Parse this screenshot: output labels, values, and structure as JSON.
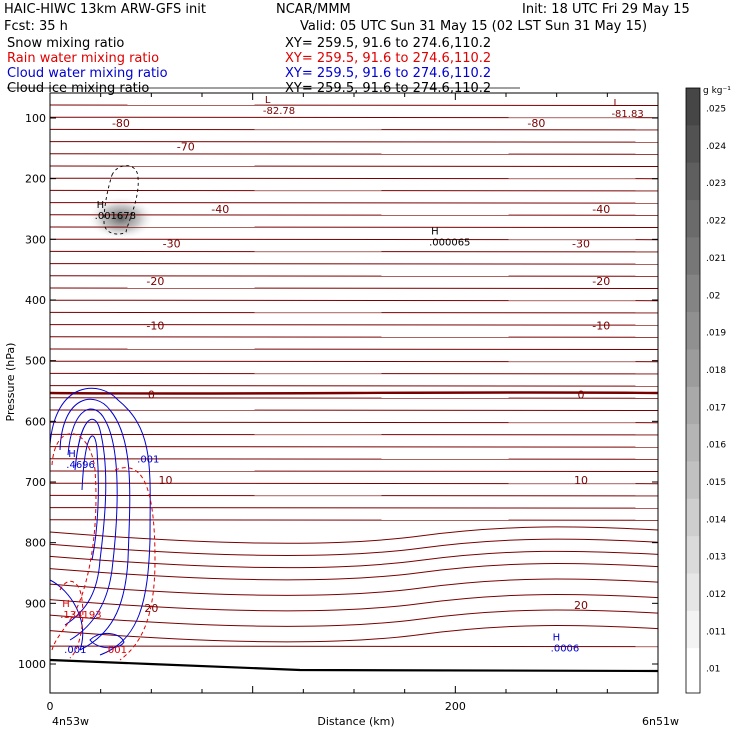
{
  "header": {
    "model": "HAIC-HIWC 13km ARW-GFS init",
    "center": "NCAR/MMM",
    "init": "Init: 18 UTC Fri 29 May 15",
    "fcst": "Fcst:   35 h",
    "valid": "Valid: 05 UTC Sun 31 May 15 (02 LST Sun 31 May 15)",
    "fields": [
      {
        "name": "Snow mixing ratio",
        "xy": "XY= 259.5, 91.6 to 274.6,110.2",
        "color": "#000000"
      },
      {
        "name": "Rain water mixing ratio",
        "xy": "XY= 259.5, 91.6 to 274.6,110.2",
        "color": "#e00000"
      },
      {
        "name": "Cloud water mixing ratio",
        "xy": "XY= 259.5, 91.6 to 274.6,110.2",
        "color": "#0000d0"
      },
      {
        "name": "Cloud ice mixing ratio",
        "xy": "XY= 259.5, 91.6 to 274.6,110.2",
        "color": "#000000"
      }
    ]
  },
  "colorbar": {
    "unit": "g kg⁻¹",
    "labels": [
      ".025",
      ".024",
      ".023",
      ".022",
      ".021",
      ".02",
      ".019",
      ".018",
      ".017",
      ".016",
      ".015",
      ".014",
      ".013",
      ".012",
      ".011",
      ".01"
    ]
  },
  "chart_data": {
    "type": "cross-section contour",
    "xlabel": "Distance (km)",
    "ylabel": "Pressure (hPa)",
    "xlim": [
      0,
      300
    ],
    "ylim": [
      1050,
      50
    ],
    "x_ticks": [
      0,
      200
    ],
    "y_ticks": [
      100,
      200,
      300,
      400,
      500,
      600,
      700,
      800,
      900,
      1000
    ],
    "x_start_label": "4n53w",
    "x_end_label": "6n51w",
    "temperature_contours": {
      "color": "#7a0000",
      "labels": [
        {
          "text": "-80",
          "x": 35,
          "p": 108
        },
        {
          "text": "-80",
          "x": 240,
          "p": 108
        },
        {
          "text": "-70",
          "x": 67,
          "p": 147
        },
        {
          "text": "-40",
          "x": 84,
          "p": 250
        },
        {
          "text": "-40",
          "x": 272,
          "p": 250
        },
        {
          "text": "-30",
          "x": 60,
          "p": 307
        },
        {
          "text": "-30",
          "x": 262,
          "p": 307
        },
        {
          "text": "-20",
          "x": 52,
          "p": 369
        },
        {
          "text": "-20",
          "x": 272,
          "p": 369
        },
        {
          "text": "-10",
          "x": 52,
          "p": 442
        },
        {
          "text": "-10",
          "x": 272,
          "p": 442
        },
        {
          "text": "0",
          "x": 50,
          "p": 556
        },
        {
          "text": "0",
          "x": 262,
          "p": 556
        },
        {
          "text": "10",
          "x": 57,
          "p": 697
        },
        {
          "text": "10",
          "x": 262,
          "p": 697
        },
        {
          "text": "20",
          "x": 50,
          "p": 908
        },
        {
          "text": "20",
          "x": 262,
          "p": 903
        }
      ]
    },
    "extrema": [
      {
        "letter": "L",
        "value": "-82.78",
        "x": 108,
        "p": 75,
        "color": "#7a0000"
      },
      {
        "letter": "L",
        "value": "-81.83",
        "x": 280,
        "p": 80,
        "color": "#7a0000"
      },
      {
        "letter": "H",
        "value": ".001678",
        "x": 25,
        "p": 248,
        "color": "#000000"
      },
      {
        "letter": "H",
        "value": ".000065",
        "x": 190,
        "p": 292,
        "color": "#000000"
      },
      {
        "letter": "H",
        "value": ".4696",
        "x": 11,
        "p": 659,
        "color": "#0000d0"
      },
      {
        "letter": "H",
        "value": ".134193",
        "x": 8,
        "p": 906,
        "color": "#e00000"
      },
      {
        "letter": "H",
        "value": ".0006",
        "x": 250,
        "p": 961,
        "color": "#0000d0"
      }
    ],
    "value_labels": [
      {
        "text": ".001",
        "x": 43,
        "p": 668,
        "color": "#0000d0"
      },
      {
        "text": ".001",
        "x": 7,
        "p": 982,
        "color": "#0000d0"
      },
      {
        "text": ".001",
        "x": 27,
        "p": 982,
        "color": "#e00000"
      }
    ],
    "shading": {
      "field": "Snow mixing ratio",
      "max_location": {
        "x": 35,
        "p": 265
      }
    }
  }
}
